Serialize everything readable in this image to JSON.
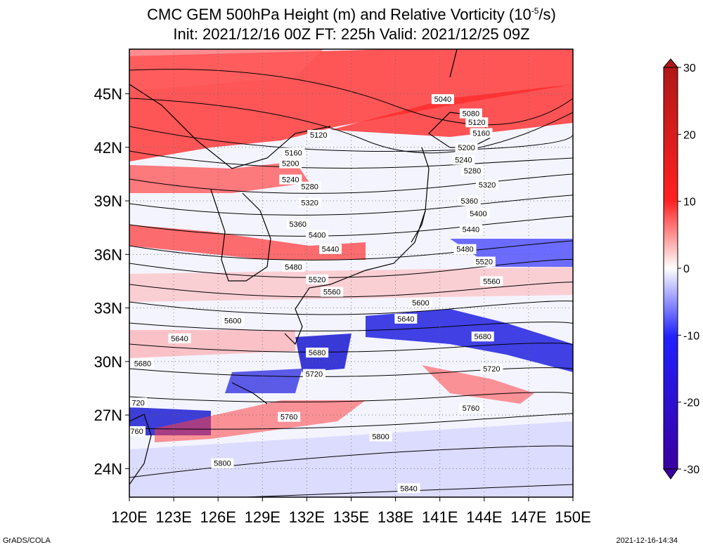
{
  "title_line1": "CMC GEM 500hPa Height (m) and Relative Vorticity (10",
  "title_line1_sup": "-5",
  "title_line1_end": "/s)",
  "title_line2": "Init: 2021/12/16 00Z  FT: 225h  Valid: 2021/12/25 09Z",
  "credit": "GrADS/COLA",
  "timestamp": "2021-12-16-14:34",
  "map": {
    "lon_range": [
      120,
      150
    ],
    "lat_range": [
      22.4,
      47.5
    ],
    "lon_ticks": [
      "120E",
      "123E",
      "126E",
      "129E",
      "132E",
      "135E",
      "138E",
      "141E",
      "144E",
      "147E",
      "150E"
    ],
    "lon_tick_values": [
      120,
      123,
      126,
      129,
      132,
      135,
      138,
      141,
      144,
      147,
      150
    ],
    "lat_ticks": [
      "24N",
      "27N",
      "30N",
      "33N",
      "36N",
      "39N",
      "42N",
      "45N"
    ],
    "lat_tick_values": [
      24,
      27,
      30,
      33,
      36,
      39,
      42,
      45
    ],
    "grid": "dotted"
  },
  "colorbar": {
    "labels": [
      "30",
      "20",
      "10",
      "0",
      "-10",
      "-20",
      "-30"
    ],
    "values": [
      30,
      20,
      10,
      0,
      -10,
      -20,
      -30
    ],
    "colors": {
      "max": "#b01818",
      "pos": "#ff2020",
      "zero": "#ffffff",
      "neg": "#2020ff",
      "min": "#3a00a0"
    }
  },
  "contour_labels": [
    {
      "text": "5040",
      "lon": 141.2,
      "lat": 44.7
    },
    {
      "text": "5080",
      "lon": 143.1,
      "lat": 43.9
    },
    {
      "text": "5120",
      "lon": 143.5,
      "lat": 43.4
    },
    {
      "text": "5120",
      "lon": 132.8,
      "lat": 42.7
    },
    {
      "text": "5160",
      "lon": 143.8,
      "lat": 42.8
    },
    {
      "text": "5160",
      "lon": 131.1,
      "lat": 41.7
    },
    {
      "text": "5200",
      "lon": 142.8,
      "lat": 42.0
    },
    {
      "text": "5200",
      "lon": 130.9,
      "lat": 41.1
    },
    {
      "text": "5240",
      "lon": 142.6,
      "lat": 41.3
    },
    {
      "text": "5240",
      "lon": 130.9,
      "lat": 40.2
    },
    {
      "text": "5280",
      "lon": 143.2,
      "lat": 40.7
    },
    {
      "text": "5280",
      "lon": 132.2,
      "lat": 39.8
    },
    {
      "text": "5320",
      "lon": 144.2,
      "lat": 39.9
    },
    {
      "text": "5320",
      "lon": 132.2,
      "lat": 38.9
    },
    {
      "text": "5360",
      "lon": 143.0,
      "lat": 39.0
    },
    {
      "text": "5360",
      "lon": 131.4,
      "lat": 37.7
    },
    {
      "text": "5400",
      "lon": 143.6,
      "lat": 38.3
    },
    {
      "text": "5400",
      "lon": 132.7,
      "lat": 37.1
    },
    {
      "text": "5440",
      "lon": 143.1,
      "lat": 37.4
    },
    {
      "text": "5440",
      "lon": 133.6,
      "lat": 36.3
    },
    {
      "text": "5480",
      "lon": 142.7,
      "lat": 36.3
    },
    {
      "text": "5480",
      "lon": 131.1,
      "lat": 35.3
    },
    {
      "text": "5520",
      "lon": 144.0,
      "lat": 35.6
    },
    {
      "text": "5520",
      "lon": 132.7,
      "lat": 34.6
    },
    {
      "text": "5560",
      "lon": 144.5,
      "lat": 34.5
    },
    {
      "text": "5560",
      "lon": 133.7,
      "lat": 33.9
    },
    {
      "text": "5600",
      "lon": 139.7,
      "lat": 33.3
    },
    {
      "text": "5600",
      "lon": 127.0,
      "lat": 32.3
    },
    {
      "text": "5640",
      "lon": 138.7,
      "lat": 32.4
    },
    {
      "text": "5640",
      "lon": 123.4,
      "lat": 31.3
    },
    {
      "text": "5680",
      "lon": 143.9,
      "lat": 31.4
    },
    {
      "text": "5680",
      "lon": 132.7,
      "lat": 30.5
    },
    {
      "text": "5680",
      "lon": 120.9,
      "lat": 29.9
    },
    {
      "text": "5720",
      "lon": 144.5,
      "lat": 29.6
    },
    {
      "text": "5720",
      "lon": 132.5,
      "lat": 29.3
    },
    {
      "text": "720",
      "lon": 120.6,
      "lat": 27.7
    },
    {
      "text": "5760",
      "lon": 143.1,
      "lat": 27.4
    },
    {
      "text": "5760",
      "lon": 130.8,
      "lat": 26.9
    },
    {
      "text": "760",
      "lon": 120.5,
      "lat": 26.1
    },
    {
      "text": "5800",
      "lon": 137.0,
      "lat": 25.8
    },
    {
      "text": "5800",
      "lon": 126.3,
      "lat": 24.3
    },
    {
      "text": "5840",
      "lon": 138.9,
      "lat": 22.9
    }
  ]
}
